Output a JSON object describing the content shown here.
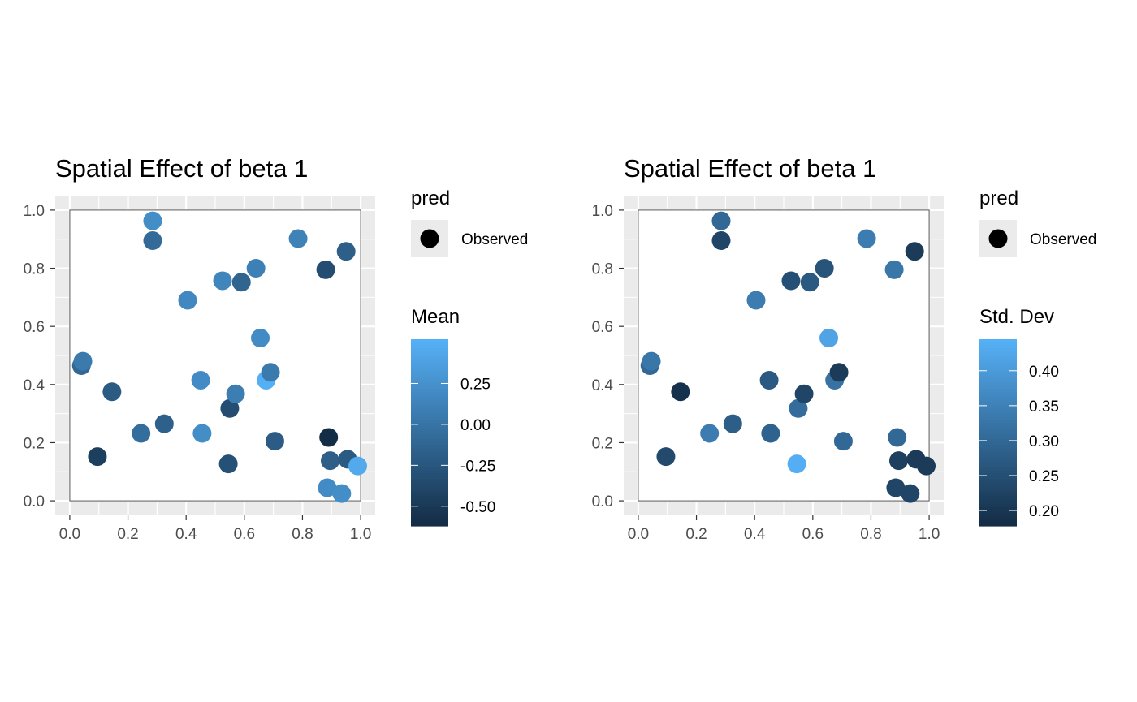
{
  "chart_data": [
    {
      "type": "scatter",
      "title": "Spatial Effect of beta 1",
      "xlabel": "",
      "ylabel": "",
      "xlim": [
        -0.05,
        1.05
      ],
      "ylim": [
        -0.05,
        1.05
      ],
      "x_ticks": [
        "0.0",
        "0.2",
        "0.4",
        "0.6",
        "0.8",
        "1.0"
      ],
      "y_ticks": [
        "0.0",
        "0.2",
        "0.4",
        "0.6",
        "0.8",
        "1.0"
      ],
      "grid": true,
      "legend_position": "right",
      "shape_legend": {
        "title": "pred",
        "label": "Observed"
      },
      "color_legend": {
        "title": "Mean",
        "range": [
          -0.62,
          0.52
        ],
        "ticks": [
          -0.5,
          -0.25,
          0.0,
          0.25
        ],
        "tick_labels": [
          "-0.50",
          "-0.25",
          "0.00",
          "0.25"
        ],
        "color_low": "#132b43",
        "color_high": "#56b1f7"
      },
      "points": [
        {
          "x": 0.04,
          "y": 0.465,
          "value": -0.1
        },
        {
          "x": 0.045,
          "y": 0.48,
          "value": 0.05
        },
        {
          "x": 0.095,
          "y": 0.152,
          "value": -0.45
        },
        {
          "x": 0.145,
          "y": 0.375,
          "value": -0.22
        },
        {
          "x": 0.245,
          "y": 0.232,
          "value": -0.05
        },
        {
          "x": 0.285,
          "y": 0.963,
          "value": 0.22
        },
        {
          "x": 0.285,
          "y": 0.895,
          "value": -0.08
        },
        {
          "x": 0.325,
          "y": 0.265,
          "value": -0.17
        },
        {
          "x": 0.405,
          "y": 0.69,
          "value": 0.17
        },
        {
          "x": 0.45,
          "y": 0.415,
          "value": 0.2
        },
        {
          "x": 0.455,
          "y": 0.232,
          "value": 0.22
        },
        {
          "x": 0.525,
          "y": 0.757,
          "value": 0.15
        },
        {
          "x": 0.545,
          "y": 0.127,
          "value": -0.3
        },
        {
          "x": 0.55,
          "y": 0.318,
          "value": -0.33
        },
        {
          "x": 0.57,
          "y": 0.368,
          "value": 0.08
        },
        {
          "x": 0.59,
          "y": 0.752,
          "value": -0.13
        },
        {
          "x": 0.64,
          "y": 0.8,
          "value": 0.1
        },
        {
          "x": 0.655,
          "y": 0.56,
          "value": 0.2
        },
        {
          "x": 0.675,
          "y": 0.415,
          "value": 0.5
        },
        {
          "x": 0.69,
          "y": 0.442,
          "value": 0.05
        },
        {
          "x": 0.705,
          "y": 0.205,
          "value": -0.2
        },
        {
          "x": 0.785,
          "y": 0.902,
          "value": 0.12
        },
        {
          "x": 0.88,
          "y": 0.795,
          "value": -0.33
        },
        {
          "x": 0.885,
          "y": 0.045,
          "value": 0.2
        },
        {
          "x": 0.89,
          "y": 0.218,
          "value": -0.6
        },
        {
          "x": 0.895,
          "y": 0.138,
          "value": -0.18
        },
        {
          "x": 0.935,
          "y": 0.025,
          "value": 0.22
        },
        {
          "x": 0.95,
          "y": 0.858,
          "value": -0.18
        },
        {
          "x": 0.955,
          "y": 0.143,
          "value": -0.22
        },
        {
          "x": 0.99,
          "y": 0.12,
          "value": 0.45
        }
      ]
    },
    {
      "type": "scatter",
      "title": "Spatial Effect of beta 1",
      "xlabel": "",
      "ylabel": "",
      "xlim": [
        -0.05,
        1.05
      ],
      "ylim": [
        -0.05,
        1.05
      ],
      "x_ticks": [
        "0.0",
        "0.2",
        "0.4",
        "0.6",
        "0.8",
        "1.0"
      ],
      "y_ticks": [
        "0.0",
        "0.2",
        "0.4",
        "0.6",
        "0.8",
        "1.0"
      ],
      "grid": true,
      "legend_position": "right",
      "shape_legend": {
        "title": "pred",
        "label": "Observed"
      },
      "color_legend": {
        "title": "Std. Dev",
        "range": [
          0.178,
          0.445
        ],
        "ticks": [
          0.2,
          0.25,
          0.3,
          0.35,
          0.4
        ],
        "tick_labels": [
          "0.20",
          "0.25",
          "0.30",
          "0.35",
          "0.40"
        ],
        "color_low": "#132b43",
        "color_high": "#56b1f7"
      },
      "points": [
        {
          "x": 0.04,
          "y": 0.465,
          "value": 0.3
        },
        {
          "x": 0.045,
          "y": 0.48,
          "value": 0.33
        },
        {
          "x": 0.095,
          "y": 0.152,
          "value": 0.24
        },
        {
          "x": 0.145,
          "y": 0.375,
          "value": 0.19
        },
        {
          "x": 0.245,
          "y": 0.232,
          "value": 0.34
        },
        {
          "x": 0.285,
          "y": 0.963,
          "value": 0.3
        },
        {
          "x": 0.285,
          "y": 0.895,
          "value": 0.23
        },
        {
          "x": 0.325,
          "y": 0.265,
          "value": 0.28
        },
        {
          "x": 0.405,
          "y": 0.69,
          "value": 0.34
        },
        {
          "x": 0.45,
          "y": 0.415,
          "value": 0.27
        },
        {
          "x": 0.455,
          "y": 0.232,
          "value": 0.29
        },
        {
          "x": 0.525,
          "y": 0.757,
          "value": 0.25
        },
        {
          "x": 0.545,
          "y": 0.127,
          "value": 0.44
        },
        {
          "x": 0.55,
          "y": 0.318,
          "value": 0.31
        },
        {
          "x": 0.57,
          "y": 0.368,
          "value": 0.23
        },
        {
          "x": 0.59,
          "y": 0.752,
          "value": 0.27
        },
        {
          "x": 0.64,
          "y": 0.8,
          "value": 0.26
        },
        {
          "x": 0.655,
          "y": 0.56,
          "value": 0.42
        },
        {
          "x": 0.675,
          "y": 0.415,
          "value": 0.32
        },
        {
          "x": 0.69,
          "y": 0.442,
          "value": 0.21
        },
        {
          "x": 0.705,
          "y": 0.205,
          "value": 0.3
        },
        {
          "x": 0.785,
          "y": 0.902,
          "value": 0.34
        },
        {
          "x": 0.88,
          "y": 0.795,
          "value": 0.33
        },
        {
          "x": 0.885,
          "y": 0.045,
          "value": 0.23
        },
        {
          "x": 0.89,
          "y": 0.218,
          "value": 0.3
        },
        {
          "x": 0.895,
          "y": 0.138,
          "value": 0.22
        },
        {
          "x": 0.935,
          "y": 0.025,
          "value": 0.23
        },
        {
          "x": 0.95,
          "y": 0.858,
          "value": 0.21
        },
        {
          "x": 0.955,
          "y": 0.143,
          "value": 0.21
        },
        {
          "x": 0.99,
          "y": 0.12,
          "value": 0.21
        }
      ]
    }
  ]
}
